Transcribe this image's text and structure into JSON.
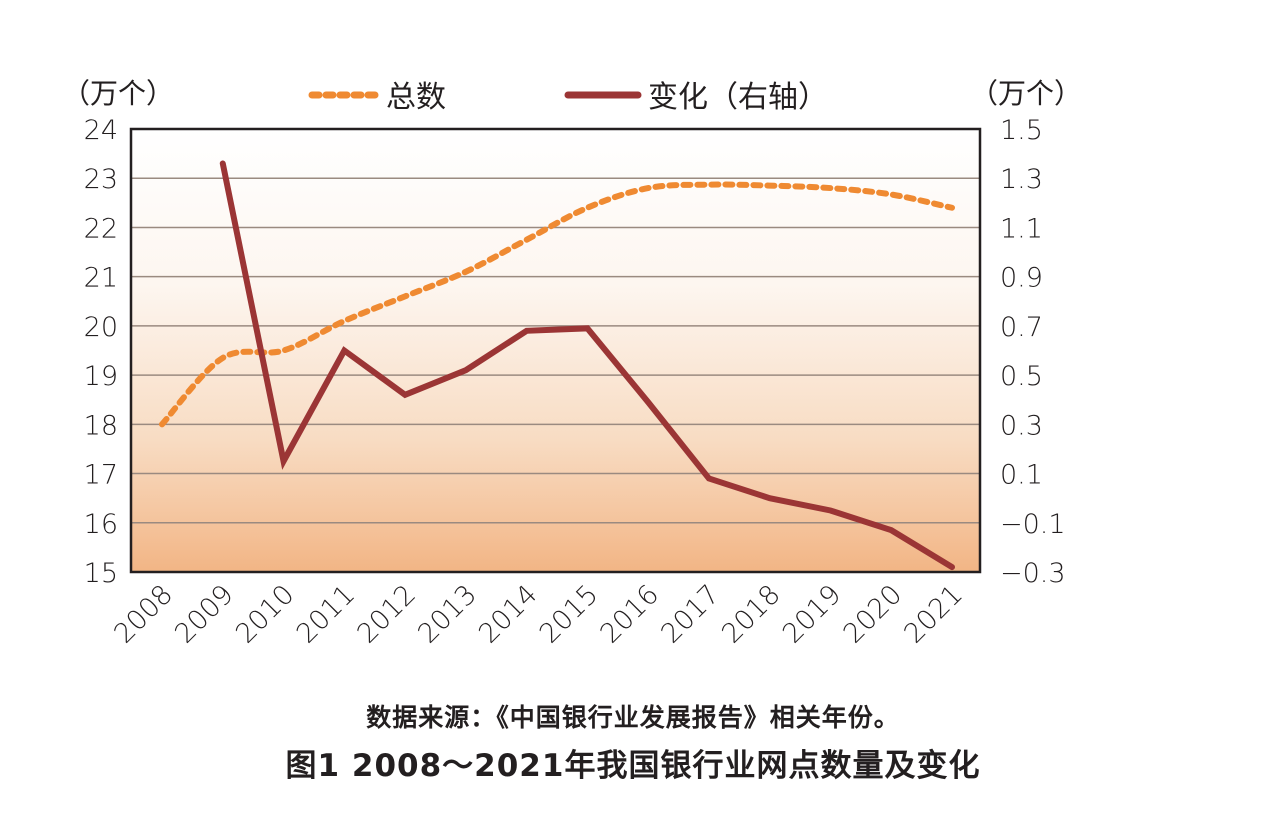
{
  "chart_data": {
    "type": "line",
    "title": "图1 2008～2021年我国银行业网点数量及变化",
    "source_note": "数据来源：《中国银行业发展报告》相关年份。",
    "categories": [
      "2008",
      "2009",
      "2010",
      "2011",
      "2012",
      "2013",
      "2014",
      "2015",
      "2016",
      "2017",
      "2018",
      "2019",
      "2020",
      "2021"
    ],
    "left_axis": {
      "unit_label": "（万个）",
      "ylim": [
        15,
        24
      ],
      "ticks": [
        "24",
        "23",
        "22",
        "21",
        "20",
        "19",
        "18",
        "17",
        "16",
        "15"
      ],
      "tick_values": [
        24,
        23,
        22,
        21,
        20,
        19,
        18,
        17,
        16,
        15
      ]
    },
    "right_axis": {
      "unit_label": "（万个）",
      "ylim": [
        -0.3,
        1.5
      ],
      "ticks": [
        "1.5",
        "1.3",
        "1.1",
        "0.9",
        "0.7",
        "0.5",
        "0.3",
        "0.1",
        "−0.1",
        "−0.3"
      ],
      "tick_values": [
        1.5,
        1.3,
        1.1,
        0.9,
        0.7,
        0.5,
        0.3,
        0.1,
        -0.1,
        -0.3
      ]
    },
    "grid": true,
    "legend_position": "top-center",
    "series": [
      {
        "name": "总数",
        "axis": "left",
        "style": "dashed",
        "color": "#ef8a32",
        "values": [
          18.0,
          19.35,
          19.5,
          20.1,
          20.6,
          21.1,
          21.75,
          22.4,
          22.8,
          22.87,
          22.85,
          22.8,
          22.67,
          22.4
        ]
      },
      {
        "name": "变化（右轴）",
        "axis": "right",
        "style": "solid",
        "color": "#9b3535",
        "values": [
          null,
          1.36,
          0.15,
          0.6,
          0.42,
          0.52,
          0.68,
          0.69,
          0.39,
          0.08,
          0.0,
          -0.05,
          -0.13,
          -0.28
        ]
      }
    ]
  },
  "text": {
    "left_unit": "（万个）",
    "right_unit": "（万个）",
    "legend_total": "总数",
    "legend_change": "变化（右轴）",
    "source": "数据来源：《中国银行业发展报告》相关年份。",
    "caption": "图1  2008～2021年我国银行业网点数量及变化"
  }
}
